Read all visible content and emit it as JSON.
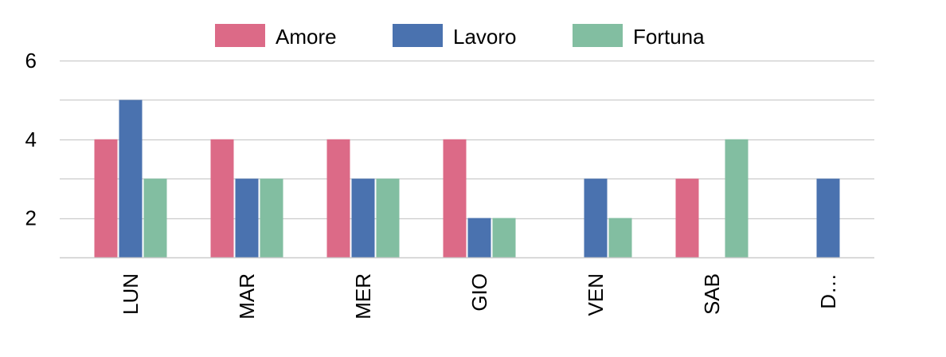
{
  "chart_data": {
    "type": "bar",
    "categories": [
      "LUN",
      "MAR",
      "MER",
      "GIO",
      "VEN",
      "SAB",
      "D…"
    ],
    "series": [
      {
        "name": "Amore",
        "color": "#DC6A87",
        "values": [
          4,
          4,
          4,
          4,
          1,
          3,
          1
        ]
      },
      {
        "name": "Lavoro",
        "color": "#4A72AF",
        "values": [
          5,
          3,
          3,
          2,
          3,
          1,
          3
        ]
      },
      {
        "name": "Fortuna",
        "color": "#82BEA1",
        "values": [
          3,
          3,
          3,
          2,
          2,
          4,
          1
        ]
      }
    ],
    "ylim": [
      1,
      6
    ],
    "yticks": [
      2,
      4,
      6
    ],
    "grid": true,
    "legend_position": "top-center"
  }
}
